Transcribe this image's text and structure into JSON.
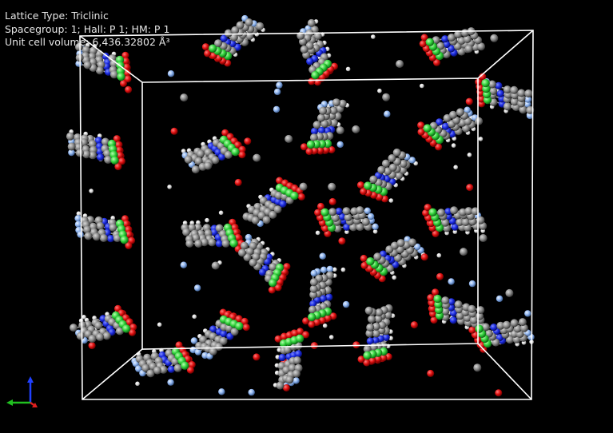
{
  "info": {
    "lattice_type": "Lattice Type: Triclinic",
    "spacegroup": "Spacegroup: 1; Hall: P 1; HM: P 1",
    "volume": "Unit cell volume: 6,436.32802 Å³"
  },
  "colors": {
    "background": "#000000",
    "cell_edges": "#ffffff",
    "carbon": "#8c8c8c",
    "hydrogen": "#e8e8e8",
    "oxygen": "#e01010",
    "nitrogen": "#1a2ae0",
    "metal": "#2fd03a",
    "fluorine": "#8fb4ee",
    "axis_x": "#e02020",
    "axis_y": "#20c020",
    "axis_z": "#2040ff"
  },
  "icons": {
    "axes": "xyz-axes-icon"
  }
}
